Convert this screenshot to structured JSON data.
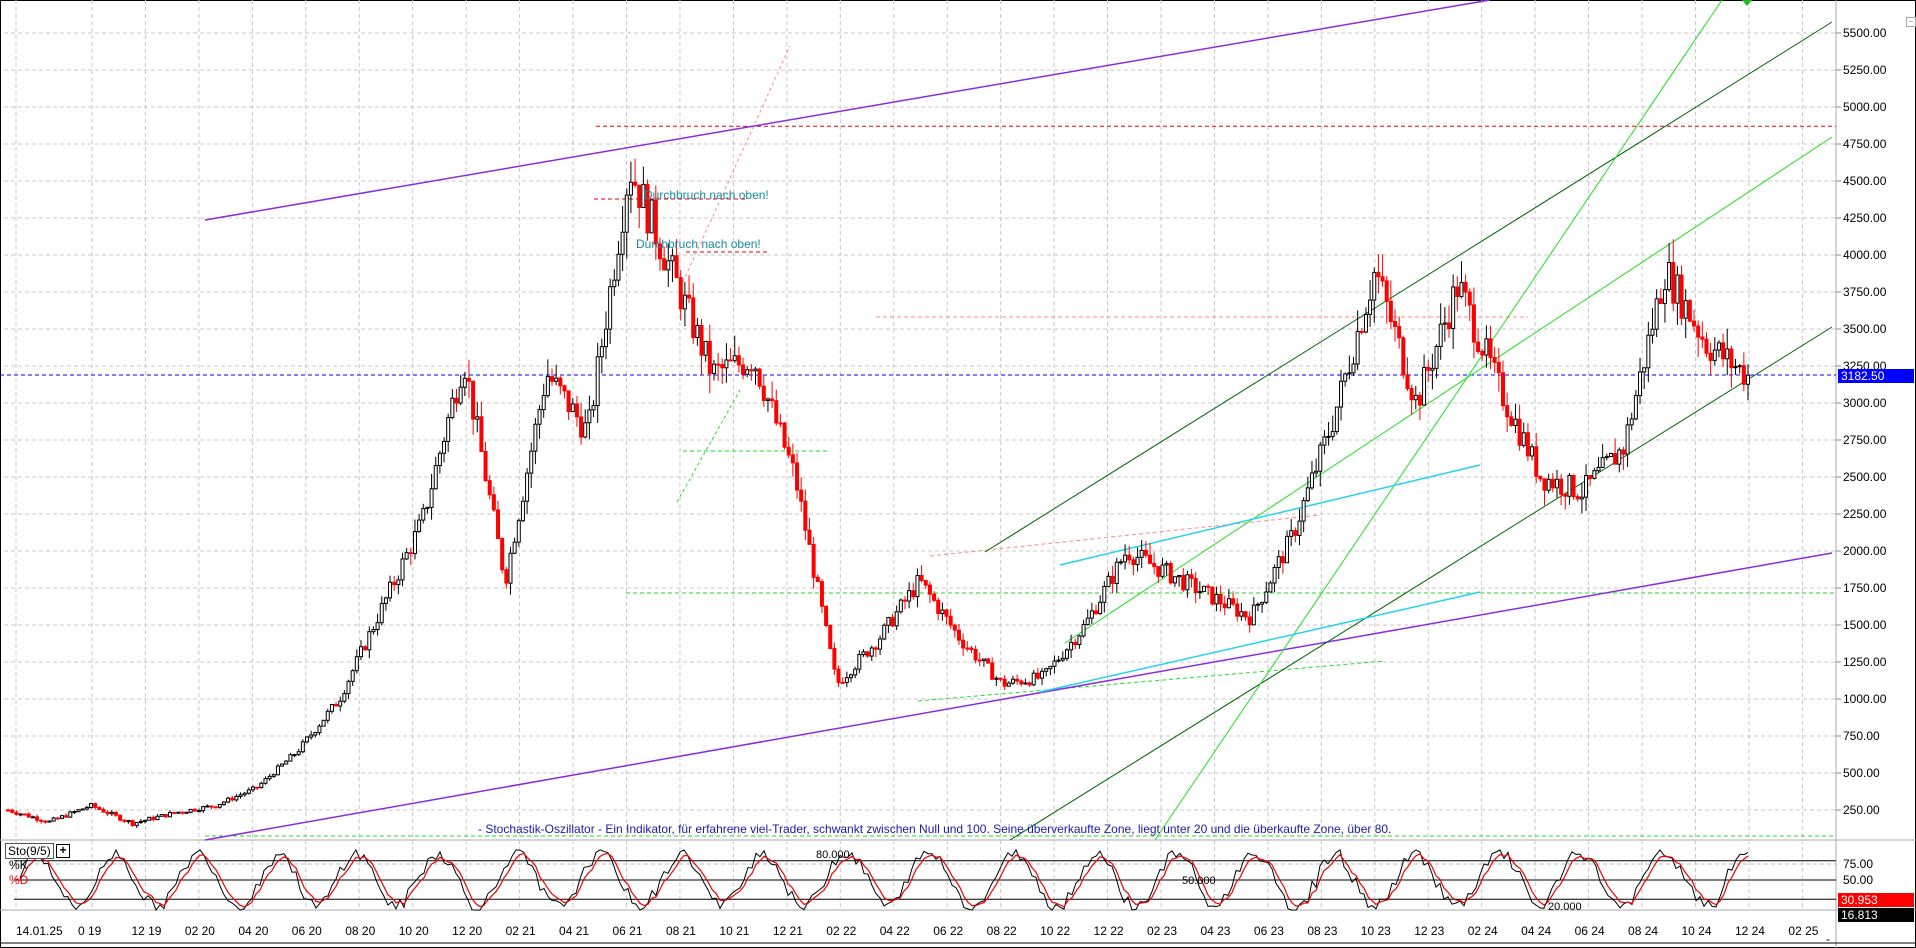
{
  "chart_data": [
    {
      "type": "candlestick",
      "title": "",
      "xlabel": "",
      "ylabel": "",
      "ylim": [
        0,
        5750
      ],
      "y_ticks": [
        "5500.00",
        "5250.00",
        "5000.00",
        "4750.00",
        "4500.00",
        "4250.00",
        "4000.00",
        "3750.00",
        "3500.00",
        "3250.00",
        "3000.00",
        "2750.00",
        "2500.00",
        "2250.00",
        "2000.00",
        "1750.00",
        "1500.00",
        "1250.00",
        "1000.00",
        "750.00",
        "500.00",
        "250.00"
      ],
      "x_ticks": [
        "14.01.25",
        "0 19",
        "12 19",
        "02 20",
        "04 20",
        "06 20",
        "08 20",
        "10 20",
        "12 20",
        "02 21",
        "04 21",
        "06 21",
        "08 21",
        "10 21",
        "12 21",
        "02 22",
        "04 22",
        "06 22",
        "08 22",
        "10 22",
        "12 22",
        "02 23",
        "04 23",
        "06 23",
        "08 23",
        "10 23",
        "12 23",
        "02 24",
        "04 24",
        "06 24",
        "08 24",
        "10 24",
        "12 24",
        "02 25"
      ],
      "grid": true,
      "last_price": "3182.50",
      "series_approx_close": {
        "dates": [
          "08 19",
          "12 19",
          "02 20",
          "04 20",
          "06 20",
          "08 20",
          "10 20",
          "12 20",
          "01 21",
          "02 21",
          "04 21",
          "05 21",
          "06 21",
          "08 21",
          "09 21",
          "11 21",
          "12 21",
          "02 22",
          "04 22",
          "05 22",
          "06 22",
          "07 22",
          "08 22",
          "10 22",
          "11 22",
          "12 22",
          "02 23",
          "04 23",
          "06 23",
          "08 23",
          "10 23",
          "12 23",
          "02 24",
          "03 24",
          "04 24",
          "06 24",
          "07 24",
          "08 24",
          "10 24",
          "11 24",
          "12 24",
          "01 25",
          "02 25"
        ],
        "values": [
          250,
          170,
          280,
          160,
          230,
          280,
          400,
          650,
          1000,
          1600,
          2200,
          3300,
          1800,
          3200,
          2800,
          4600,
          3900,
          3200,
          3300,
          2500,
          1100,
          1400,
          1800,
          1400,
          1100,
          1150,
          1500,
          2000,
          1850,
          1700,
          1550,
          2100,
          2900,
          3900,
          3000,
          3800,
          3100,
          2500,
          2400,
          2700,
          3900,
          3400,
          3182.5
        ]
      },
      "annotations": [
        {
          "text": "Durchbruch nach oben!",
          "level": 4350
        },
        {
          "text": "Durchbruch nach oben!",
          "level": 4000
        },
        {
          "text": "- Stochastik-Oszillator - Ein Indikator, für erfahrene viel-Trader, schwankt zwischen Null und 100. Seine überverkaufte Zone, liegt unter 20 und die überkaufte Zone, über 80."
        }
      ],
      "trendlines": [
        {
          "color": "#8a2be2",
          "name": "upper-channel"
        },
        {
          "color": "#8a2be2",
          "name": "lower-channel"
        },
        {
          "color": "#006400",
          "name": "fan-dark-green"
        },
        {
          "color": "#22dd22",
          "name": "fan-light-green"
        },
        {
          "color": "#22d3ee",
          "name": "cyan-channel"
        },
        {
          "color": "#ff0000",
          "name": "resistance-4870",
          "level": 4870
        },
        {
          "color": "#0000ff",
          "name": "last-price-line",
          "level": 3182.5
        },
        {
          "color": "#22dd22",
          "name": "support-1720",
          "level": 1720
        }
      ]
    },
    {
      "type": "line",
      "title": "Sto(9/5)",
      "series": [
        {
          "name": "%K",
          "color": "#000000",
          "last": 16.813
        },
        {
          "name": "%D",
          "color": "#ff0000",
          "last": 30.953
        }
      ],
      "levels": [
        80,
        50,
        20
      ],
      "level_labels": [
        "80.000",
        "50.000",
        "20.000"
      ],
      "y_ticks": [
        "75.00",
        "50.00"
      ],
      "ylim": [
        0,
        100
      ]
    }
  ],
  "axis": {
    "last_price_tag": "3182.50",
    "osc_d_tag": "30.953",
    "osc_k_tag": "16.813",
    "osc_ticks": [
      "75.00",
      "50.00"
    ]
  },
  "oscillator": {
    "title": "Sto(9/5)",
    "add_button": "+",
    "k_label": "%K",
    "d_label": "%D",
    "level_80": "80.000",
    "level_50": "50.000",
    "level_20": "20.000"
  },
  "notes": {
    "breakout_1": "Durchbruch nach oben!",
    "breakout_2": "Durchbruch nach oben!",
    "stochastic_info": "- Stochastik-Oszillator - Ein Indikator, für erfahrene viel-Trader, schwankt zwischen Null und 100. Seine überverkaufte Zone, liegt unter 20 und die überkaufte Zone, über 80."
  },
  "colors": {
    "up_candle": "#000000",
    "down_candle": "#ff0000",
    "last_price_bg": "#0000ff",
    "osc_d_bg": "#ff0000",
    "osc_k_bg": "#000000"
  },
  "ui": {
    "collapse": "−",
    "scroll_dash": "-"
  }
}
